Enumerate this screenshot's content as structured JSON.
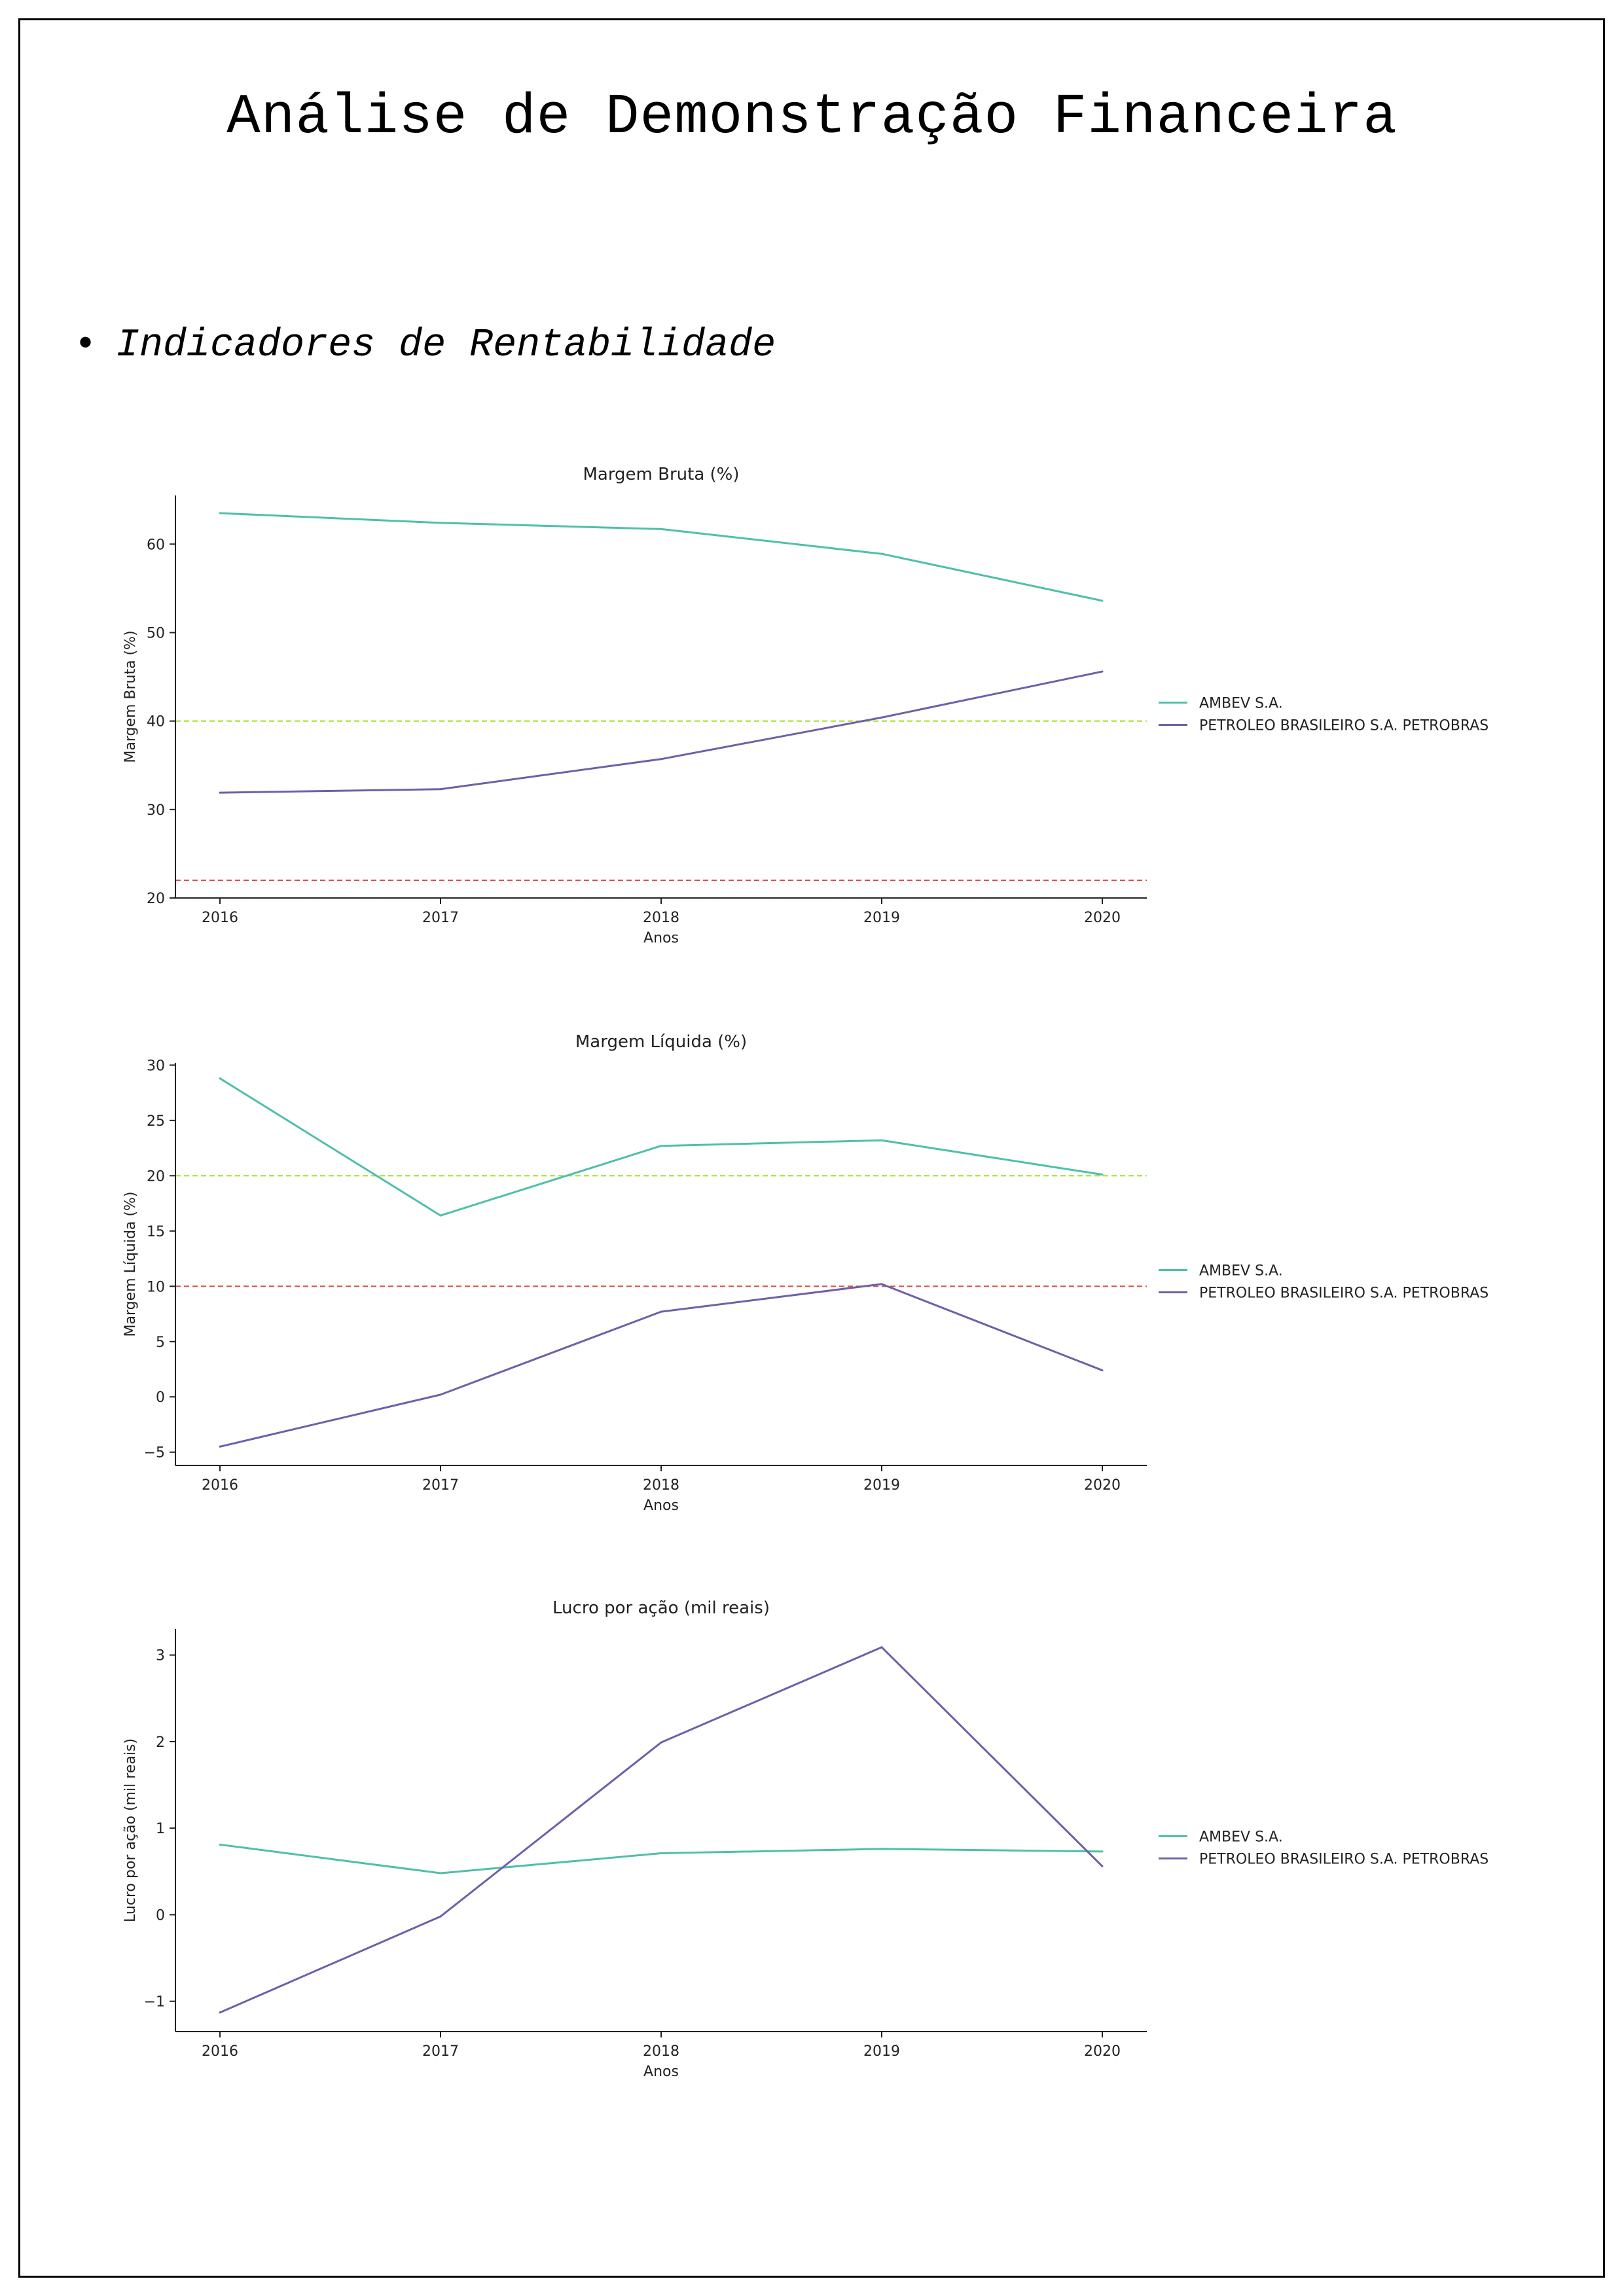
{
  "page": {
    "title": "Análise de Demonstração Financeira",
    "section": "Indicadores de Rentabilidade",
    "bullet": "•"
  },
  "chart_data": [
    {
      "type": "line",
      "title": "Margem Bruta (%)",
      "xlabel": "Anos",
      "ylabel": "Margem Bruta (%)",
      "x": [
        "2016",
        "2017",
        "2018",
        "2019",
        "2020"
      ],
      "ylim": [
        20,
        65.5
      ],
      "yticks": [
        "20",
        "30",
        "40",
        "50",
        "60"
      ],
      "ytick_values": [
        20,
        30,
        40,
        50,
        60
      ],
      "series": [
        {
          "name": "AMBEV S.A.",
          "color": "#4fbfaa",
          "values": [
            63.5,
            62.4,
            61.7,
            58.9,
            53.6
          ]
        },
        {
          "name": "PETROLEO BRASILEIRO S.A. PETROBRAS",
          "color": "#6f5fa8",
          "values": [
            31.9,
            32.3,
            35.7,
            40.4,
            45.6
          ]
        }
      ],
      "reference_lines": [
        {
          "value": 40,
          "color": "#a6e22e"
        },
        {
          "value": 22,
          "color": "#d9534f"
        }
      ],
      "grid": false,
      "legend": "right"
    },
    {
      "type": "line",
      "title": "Margem Líquida (%)",
      "xlabel": "Anos",
      "ylabel": "Margem Líquida (%)",
      "x": [
        "2016",
        "2017",
        "2018",
        "2019",
        "2020"
      ],
      "ylim": [
        -6.2,
        30.2
      ],
      "yticks": [
        "−5",
        "0",
        "5",
        "10",
        "15",
        "20",
        "25",
        "30"
      ],
      "ytick_values": [
        -5,
        0,
        5,
        10,
        15,
        20,
        25,
        30
      ],
      "series": [
        {
          "name": "AMBEV S.A.",
          "color": "#4fbfaa",
          "values": [
            28.8,
            16.4,
            22.7,
            23.2,
            20.1
          ]
        },
        {
          "name": "PETROLEO BRASILEIRO S.A. PETROBRAS",
          "color": "#6f5fa8",
          "values": [
            -4.5,
            0.2,
            7.7,
            10.2,
            2.4
          ]
        }
      ],
      "reference_lines": [
        {
          "value": 20,
          "color": "#a6e22e"
        },
        {
          "value": 10,
          "color": "#d9534f"
        }
      ],
      "grid": false,
      "legend": "right"
    },
    {
      "type": "line",
      "title": "Lucro por ação (mil reais)",
      "xlabel": "Anos",
      "ylabel": "Lucro por ação (mil reais)",
      "x": [
        "2016",
        "2017",
        "2018",
        "2019",
        "2020"
      ],
      "ylim": [
        -1.35,
        3.3
      ],
      "yticks": [
        "−1",
        "0",
        "1",
        "2",
        "3"
      ],
      "ytick_values": [
        -1,
        0,
        1,
        2,
        3
      ],
      "series": [
        {
          "name": "AMBEV S.A.",
          "color": "#4fbfaa",
          "values": [
            0.81,
            0.48,
            0.71,
            0.76,
            0.73
          ]
        },
        {
          "name": "PETROLEO BRASILEIRO S.A. PETROBRAS",
          "color": "#6f5fa8",
          "values": [
            -1.13,
            -0.02,
            1.99,
            3.09,
            0.56
          ]
        }
      ],
      "reference_lines": [],
      "grid": false,
      "legend": "right"
    }
  ]
}
